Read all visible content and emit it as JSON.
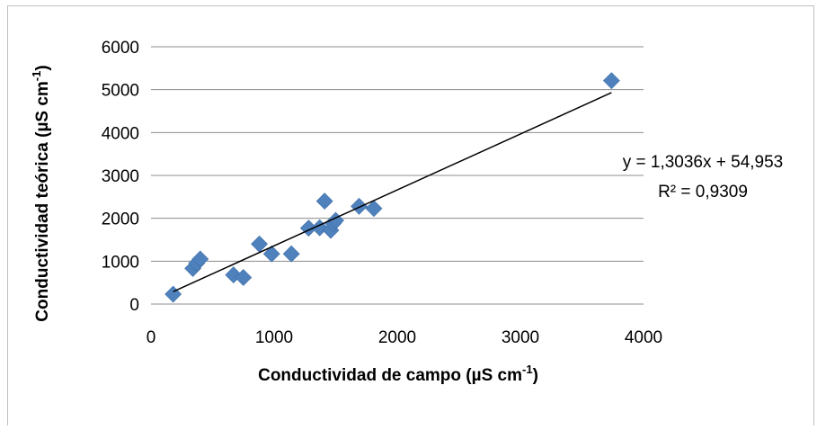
{
  "chart_data": {
    "type": "scatter",
    "title": "",
    "xlabel": "Conductividad de campo (µS  cm",
    "xlabel_sup": "-1",
    "xlabel_close": ")",
    "ylabel": "Conductividad teórica (µS  cm",
    "ylabel_sup": "-1",
    "ylabel_close": ")",
    "xlim": [
      0,
      4000
    ],
    "ylim": [
      0,
      6000
    ],
    "xticks": [
      "0",
      "1000",
      "2000",
      "3000",
      "4000"
    ],
    "yticks": [
      "0",
      "1000",
      "2000",
      "3000",
      "4000",
      "5000",
      "6000"
    ],
    "grid": "horizontal",
    "marker": "diamond",
    "colors": {
      "marker": "#4f81bd",
      "trendline": "#000000",
      "grid": "#8c8c8c",
      "frame": "#bfbfbf"
    },
    "series": [
      {
        "points": [
          [
            180,
            230
          ],
          [
            340,
            830
          ],
          [
            370,
            950
          ],
          [
            400,
            1050
          ],
          [
            670,
            680
          ],
          [
            750,
            620
          ],
          [
            880,
            1400
          ],
          [
            980,
            1170
          ],
          [
            1140,
            1170
          ],
          [
            1280,
            1770
          ],
          [
            1370,
            1780
          ],
          [
            1410,
            2400
          ],
          [
            1460,
            1720
          ],
          [
            1480,
            1880
          ],
          [
            1500,
            1950
          ],
          [
            1690,
            2280
          ],
          [
            1810,
            2230
          ],
          [
            3740,
            5210
          ]
        ]
      }
    ],
    "trendline": {
      "type": "linear",
      "slope": 1.3036,
      "intercept": 54.953,
      "x_range": [
        180,
        3740
      ],
      "equation_label": "y = 1,3036x + 54,953",
      "r2_label": "R² = 0,9309"
    }
  }
}
